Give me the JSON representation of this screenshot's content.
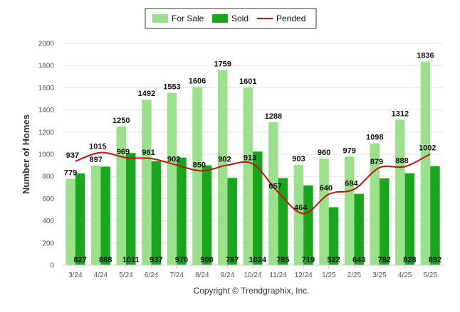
{
  "chart_data": {
    "type": "bar",
    "ylabel": "Number of Homes",
    "ylim": [
      0,
      2000
    ],
    "yticks": [
      "0",
      "200",
      "400",
      "600",
      "800",
      "1000",
      "1200",
      "1400",
      "1600",
      "1800",
      "2000"
    ],
    "categories": [
      "3/24",
      "4/24",
      "5/24",
      "6/24",
      "7/24",
      "8/24",
      "9/24",
      "10/24",
      "11/24",
      "12/24",
      "1/25",
      "2/25",
      "3/25",
      "4/25",
      "5/25"
    ],
    "grid": "horizontal",
    "legend_position": "top-center",
    "series": [
      {
        "name": "For Sale",
        "type": "bar",
        "color": "#9be08a",
        "values": [
          779,
          897,
          1250,
          1492,
          1553,
          1606,
          1759,
          1601,
          1288,
          903,
          960,
          979,
          1098,
          1312,
          1836
        ]
      },
      {
        "name": "Sold",
        "type": "bar",
        "color": "#19a61d",
        "values": [
          827,
          888,
          1011,
          937,
          970,
          900,
          787,
          1024,
          785,
          719,
          522,
          643,
          782,
          828,
          892
        ]
      },
      {
        "name": "Pended",
        "type": "line",
        "color": "#c0140e",
        "values": [
          937,
          1015,
          969,
          961,
          902,
          850,
          902,
          913,
          657,
          464,
          640,
          684,
          879,
          888,
          1002
        ]
      }
    ]
  },
  "footer": {
    "credit": "Copyright © Trendgraphix, Inc."
  }
}
